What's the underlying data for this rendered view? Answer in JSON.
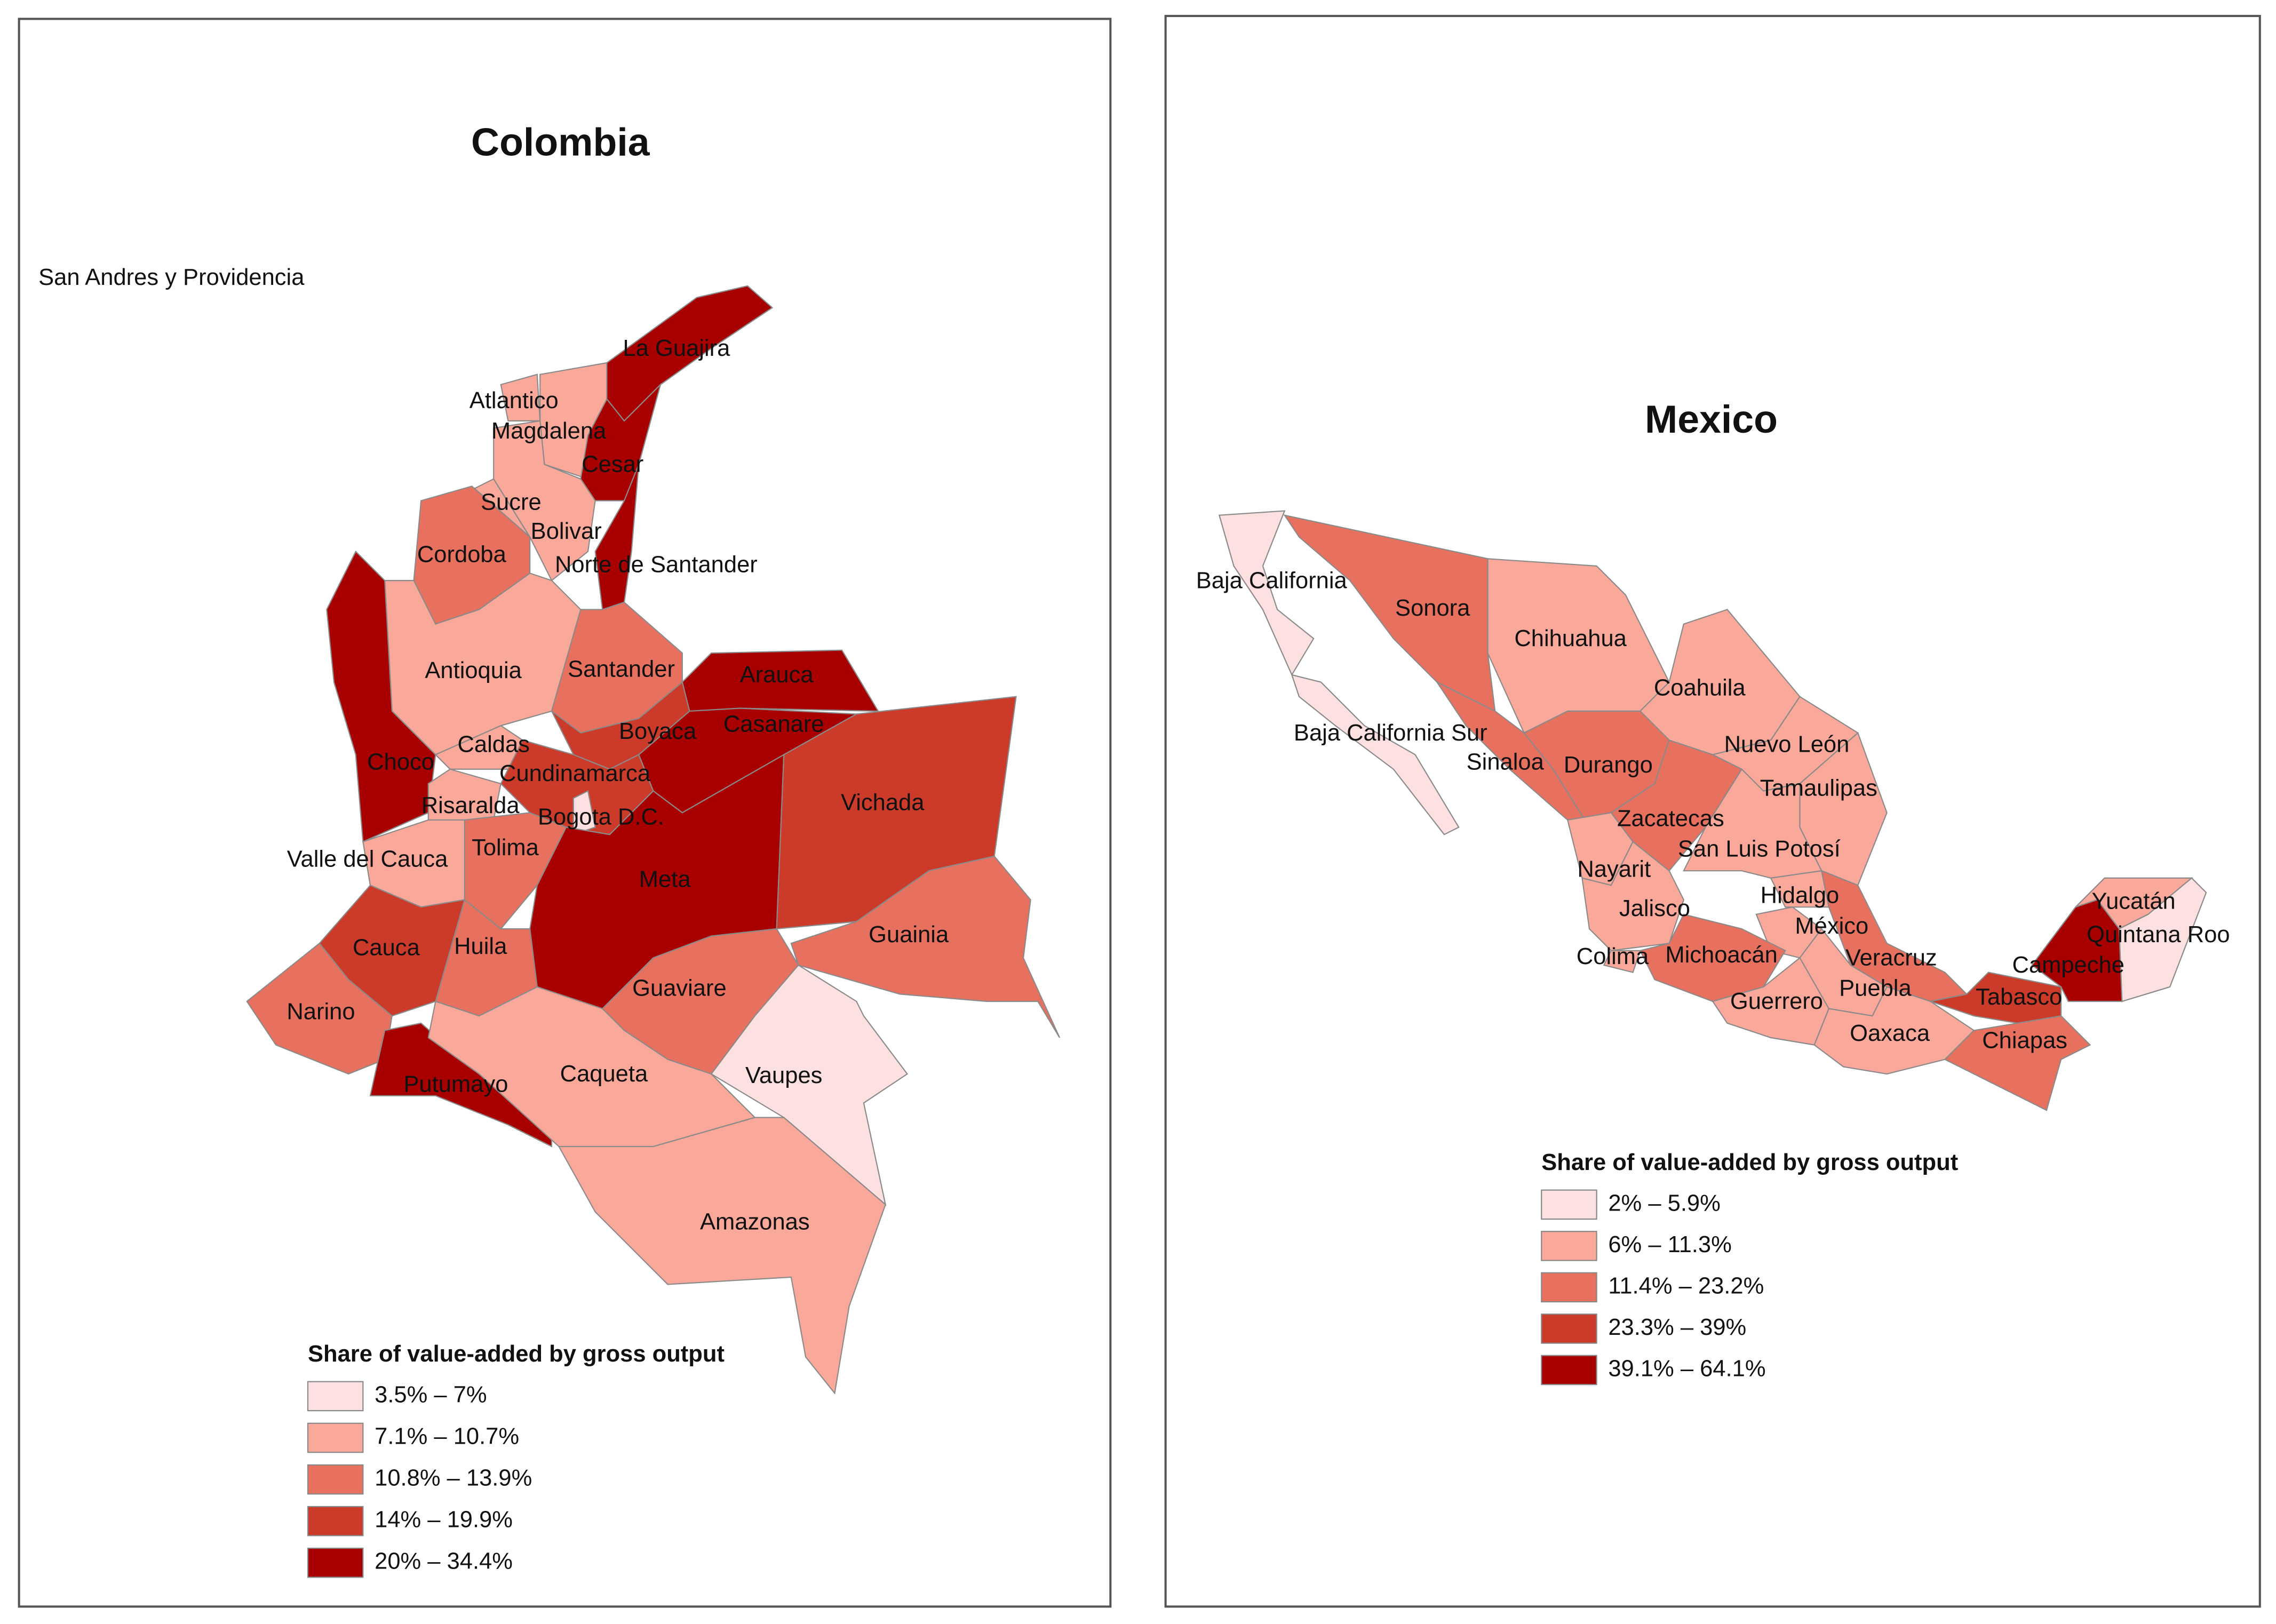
{
  "maps": [
    {
      "title": "Colombia",
      "regions": [
        {
          "name": "San Andres y Providencia"
        },
        {
          "name": "La Guajira",
          "color": "#a80000"
        },
        {
          "name": "Atlantico",
          "color": "#f9a89a"
        },
        {
          "name": "Magdalena",
          "color": "#f9a89a"
        },
        {
          "name": "Cesar",
          "color": "#a80000"
        },
        {
          "name": "Sucre",
          "color": "#f9a89a"
        },
        {
          "name": "Bolivar",
          "color": "#f9a89a"
        },
        {
          "name": "Cordoba",
          "color": "#e8705e"
        },
        {
          "name": "Norte de Santander",
          "color": "#a80000"
        },
        {
          "name": "Antioquia",
          "color": "#f9a89a"
        },
        {
          "name": "Santander",
          "color": "#e8705e"
        },
        {
          "name": "Arauca",
          "color": "#a80000"
        },
        {
          "name": "Casanare",
          "color": "#a80000"
        },
        {
          "name": "Boyaca",
          "color": "#cc3a2a"
        },
        {
          "name": "Choco",
          "color": "#a80000"
        },
        {
          "name": "Caldas",
          "color": "#f9a89a"
        },
        {
          "name": "Cundinamarca",
          "color": "#cc3a2a"
        },
        {
          "name": "Risaralda",
          "color": "#f9a89a"
        },
        {
          "name": "Bogota D.C.",
          "color": "#fde0e0"
        },
        {
          "name": "Tolima",
          "color": "#e8705e"
        },
        {
          "name": "Valle del Cauca",
          "color": "#f9a89a"
        },
        {
          "name": "Meta",
          "color": "#a80000"
        },
        {
          "name": "Vichada",
          "color": "#cc3a2a"
        },
        {
          "name": "Guainia",
          "color": "#e8705e"
        },
        {
          "name": "Guaviare",
          "color": "#e8705e"
        },
        {
          "name": "Cauca",
          "color": "#cc3a2a"
        },
        {
          "name": "Huila",
          "color": "#e8705e"
        },
        {
          "name": "Narino",
          "color": "#e8705e"
        },
        {
          "name": "Putumayo",
          "color": "#a80000"
        },
        {
          "name": "Caqueta",
          "color": "#f9a89a"
        },
        {
          "name": "Vaupes",
          "color": "#fde0e0"
        },
        {
          "name": "Amazonas",
          "color": "#f9a89a"
        }
      ],
      "legend": {
        "title": "Share of value-added by gross output",
        "entries": [
          {
            "label": "3.5% – 7%",
            "color": "#fde0e0"
          },
          {
            "label": "7.1% – 10.7%",
            "color": "#f9a89a"
          },
          {
            "label": "10.8% – 13.9%",
            "color": "#e8705e"
          },
          {
            "label": "14% – 19.9%",
            "color": "#cc3a2a"
          },
          {
            "label": "20% – 34.4%",
            "color": "#a80000"
          }
        ]
      }
    },
    {
      "title": "Mexico",
      "regions": [
        {
          "name": "Baja California",
          "color": "#fde0e0"
        },
        {
          "name": "Sonora",
          "color": "#e8705e"
        },
        {
          "name": "Chihuahua",
          "color": "#f9a89a"
        },
        {
          "name": "Coahuila",
          "color": "#f9a89a"
        },
        {
          "name": "Baja California Sur",
          "color": "#fde0e0"
        },
        {
          "name": "Sinaloa",
          "color": "#e8705e"
        },
        {
          "name": "Durango",
          "color": "#e8705e"
        },
        {
          "name": "Nuevo León",
          "color": "#f9a89a"
        },
        {
          "name": "Tamaulipas",
          "color": "#f9a89a"
        },
        {
          "name": "Zacatecas",
          "color": "#e8705e"
        },
        {
          "name": "San Luis Potosí",
          "color": "#f9a89a"
        },
        {
          "name": "Nayarit",
          "color": "#f9a89a"
        },
        {
          "name": "Jalisco",
          "color": "#f9a89a"
        },
        {
          "name": "Hidalgo",
          "color": "#f9a89a"
        },
        {
          "name": "México",
          "color": "#f9a89a"
        },
        {
          "name": "Yucatán",
          "color": "#f9a89a"
        },
        {
          "name": "Quintana Roo",
          "color": "#fde0e0"
        },
        {
          "name": "Campeche",
          "color": "#a80000"
        },
        {
          "name": "Colima",
          "color": "#f9a89a"
        },
        {
          "name": "Michoacán",
          "color": "#e8705e"
        },
        {
          "name": "Veracruz",
          "color": "#e8705e"
        },
        {
          "name": "Tabasco",
          "color": "#cc3a2a"
        },
        {
          "name": "Puebla",
          "color": "#f9a89a"
        },
        {
          "name": "Guerrero",
          "color": "#f9a89a"
        },
        {
          "name": "Oaxaca",
          "color": "#f9a89a"
        },
        {
          "name": "Chiapas",
          "color": "#e8705e"
        }
      ],
      "legend": {
        "title": "Share of value-added by gross output",
        "entries": [
          {
            "label": "2% – 5.9%",
            "color": "#fde0e0"
          },
          {
            "label": "6% – 11.3%",
            "color": "#f9a89a"
          },
          {
            "label": "11.4% – 23.2%",
            "color": "#e8705e"
          },
          {
            "label": "23.3% – 39%",
            "color": "#cc3a2a"
          },
          {
            "label": "39.1% – 64.1%",
            "color": "#a80000"
          }
        ]
      }
    }
  ]
}
